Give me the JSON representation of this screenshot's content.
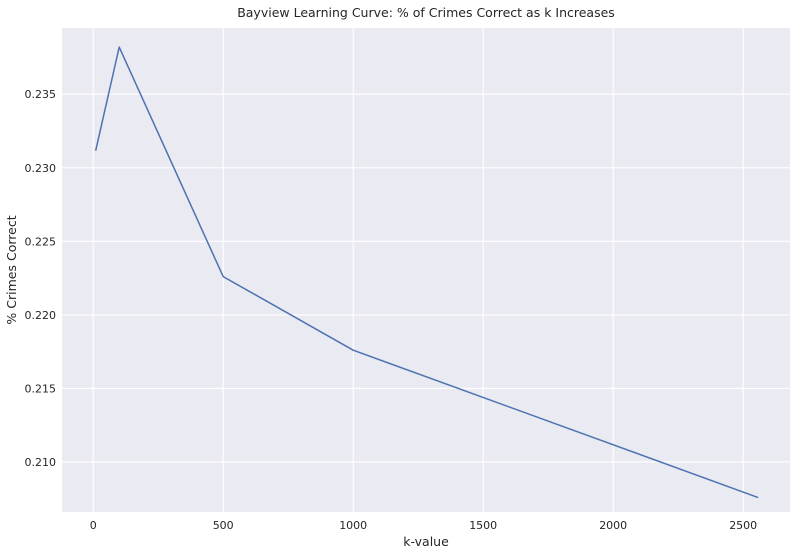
{
  "chart_data": {
    "type": "line",
    "title": "Bayview Learning Curve: % of Crimes Correct as k Increases",
    "xlabel": "k-value",
    "ylabel": "% Crimes Correct",
    "xlim": [
      -120,
      2680
    ],
    "ylim": [
      0.2066,
      0.2395
    ],
    "grid": true,
    "x_ticks": [
      0,
      500,
      1000,
      1500,
      2000,
      2500
    ],
    "x_tick_labels": [
      "0",
      "500",
      "1000",
      "1500",
      "2000",
      "2500"
    ],
    "y_ticks": [
      0.21,
      0.215,
      0.22,
      0.225,
      0.23,
      0.235
    ],
    "y_tick_labels": [
      "0.210",
      "0.215",
      "0.220",
      "0.225",
      "0.230",
      "0.235"
    ],
    "series": [
      {
        "color": "#4c72b0",
        "x": [
          10,
          100,
          500,
          1000,
          2555
        ],
        "y": [
          0.2312,
          0.2382,
          0.2226,
          0.2176,
          0.2076
        ]
      }
    ]
  }
}
